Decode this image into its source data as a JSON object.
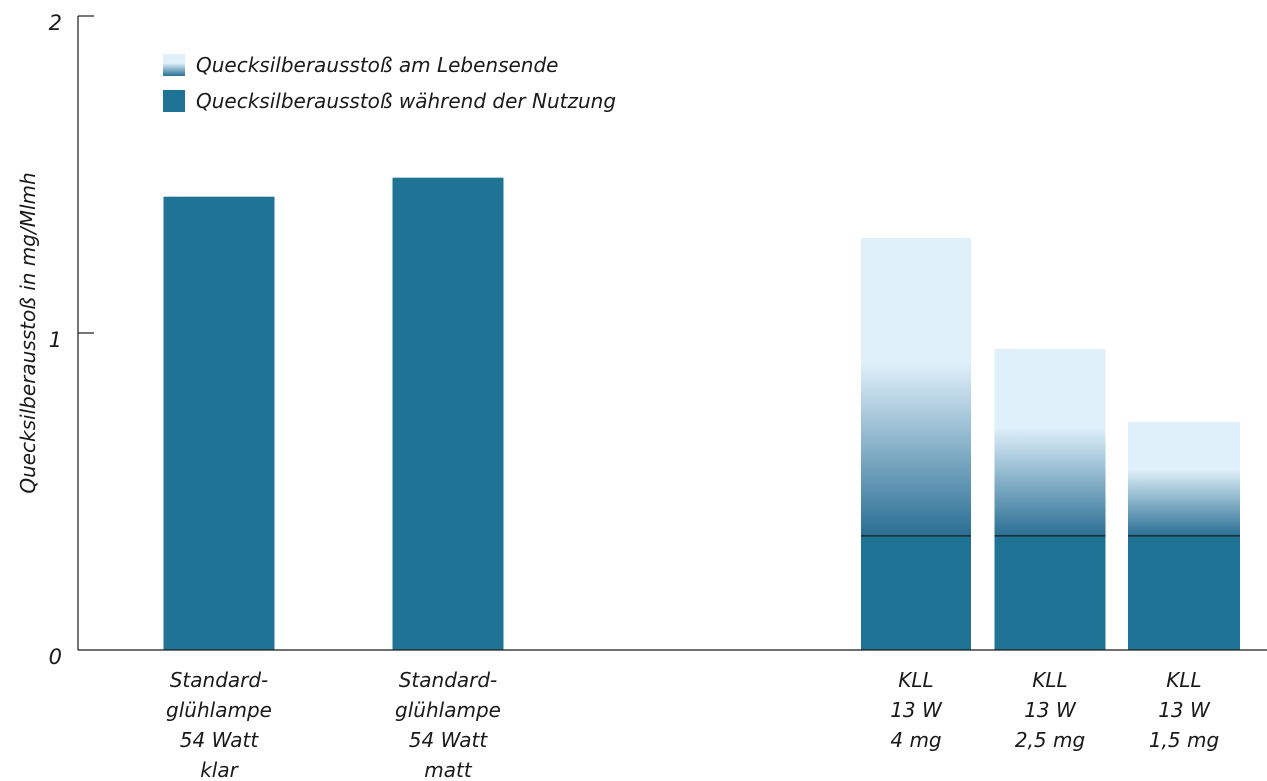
{
  "chart_data": {
    "type": "bar",
    "stacked": true,
    "title": "",
    "xlabel": "",
    "ylabel": "Quecksilberausstoß in mg/Mlmh",
    "ylim": [
      0,
      2
    ],
    "yticks": [
      "0",
      "1",
      "2"
    ],
    "grid": false,
    "legend_position": "top-left",
    "categories": [
      [
        "Standard-",
        "glühlampe",
        "54 Watt",
        "klar"
      ],
      [
        "Standard-",
        "glühlampe",
        "54 Watt",
        "matt"
      ],
      [
        "KLL",
        "13 W",
        "4 mg"
      ],
      [
        "KLL",
        "13 W",
        "2,5 mg"
      ],
      [
        "KLL",
        "13 W",
        "1,5 mg"
      ]
    ],
    "series": [
      {
        "name": "Quecksilberausstoß während der Nutzung",
        "color": "#1f7496",
        "values": [
          1.43,
          1.49,
          0.36,
          0.36,
          0.36
        ]
      },
      {
        "name": "Quecksilberausstoß am Lebensende",
        "color": "#dff0fa",
        "gradient_to": "#2a6f94",
        "values": [
          0,
          0,
          0.94,
          0.59,
          0.36
        ]
      }
    ],
    "legend_order": [
      1,
      0
    ]
  }
}
